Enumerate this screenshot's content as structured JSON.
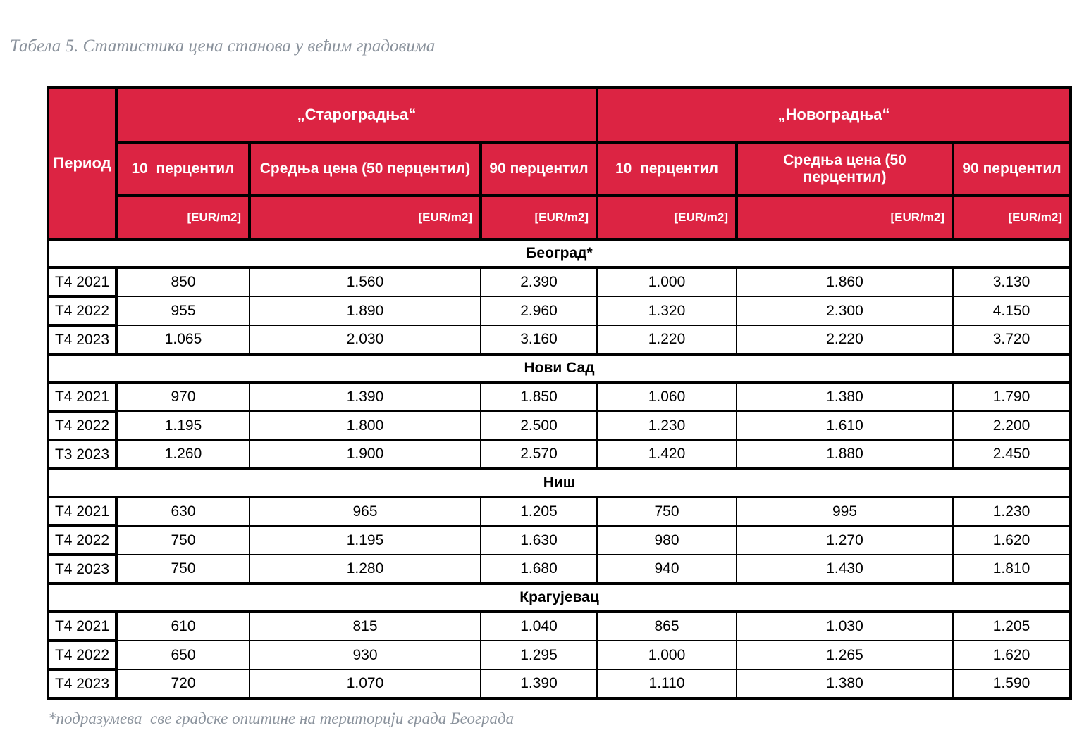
{
  "title": "Табела 5. Статистика цена станова у већим градовима",
  "footnote": "*подразумева  све градске општине на територији града Београда",
  "colors": {
    "header_red": "#dc2443",
    "header_text": "#ffffff",
    "border_black": "#000000",
    "caption_gray": "#8a929c"
  },
  "table": {
    "period_header": "Период",
    "groups": [
      {
        "label": "„Староградња“"
      },
      {
        "label": "„Новоградња“"
      }
    ],
    "sub_headers": [
      "10  перцентил",
      "Средња цена (50 перцентил)",
      "90 перцентил",
      "10  перцентил",
      "Средња цена (50 перцентил)",
      "90 перцентил"
    ],
    "unit_label": "[EUR/m2]",
    "sections": [
      {
        "city": "Београд*",
        "rows": [
          {
            "period": "Т4 2021",
            "values": [
              "850",
              "1.560",
              "2.390",
              "1.000",
              "1.860",
              "3.130"
            ]
          },
          {
            "period": "Т4 2022",
            "values": [
              "955",
              "1.890",
              "2.960",
              "1.320",
              "2.300",
              "4.150"
            ]
          },
          {
            "period": "Т4 2023",
            "values": [
              "1.065",
              "2.030",
              "3.160",
              "1.220",
              "2.220",
              "3.720"
            ]
          }
        ]
      },
      {
        "city": "Нови Сад",
        "rows": [
          {
            "period": "Т4 2021",
            "values": [
              "970",
              "1.390",
              "1.850",
              "1.060",
              "1.380",
              "1.790"
            ]
          },
          {
            "period": "Т4 2022",
            "values": [
              "1.195",
              "1.800",
              "2.500",
              "1.230",
              "1.610",
              "2.200"
            ]
          },
          {
            "period": "Т3 2023",
            "values": [
              "1.260",
              "1.900",
              "2.570",
              "1.420",
              "1.880",
              "2.450"
            ]
          }
        ]
      },
      {
        "city": "Ниш",
        "rows": [
          {
            "period": "Т4 2021",
            "values": [
              "630",
              "965",
              "1.205",
              "750",
              "995",
              "1.230"
            ]
          },
          {
            "period": "Т4 2022",
            "values": [
              "750",
              "1.195",
              "1.630",
              "980",
              "1.270",
              "1.620"
            ]
          },
          {
            "period": "Т4 2023",
            "values": [
              "750",
              "1.280",
              "1.680",
              "940",
              "1.430",
              "1.810"
            ]
          }
        ]
      },
      {
        "city": "Крагујевац",
        "rows": [
          {
            "period": "Т4 2021",
            "values": [
              "610",
              "815",
              "1.040",
              "865",
              "1.030",
              "1.205"
            ]
          },
          {
            "period": "Т4 2022",
            "values": [
              "650",
              "930",
              "1.295",
              "1.000",
              "1.265",
              "1.620"
            ]
          },
          {
            "period": "Т4 2023",
            "values": [
              "720",
              "1.070",
              "1.390",
              "1.110",
              "1.380",
              "1.590"
            ]
          }
        ]
      }
    ]
  }
}
